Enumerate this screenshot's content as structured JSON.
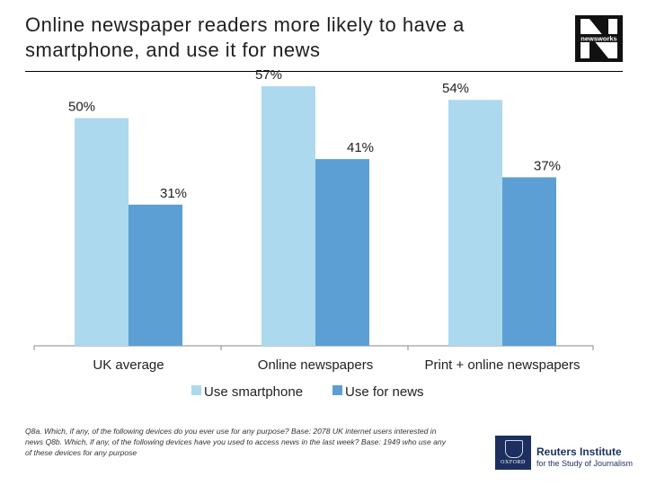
{
  "header": {
    "title": "Online newspaper readers more likely to have a smartphone, and use it for news",
    "logo_text": "newsworks"
  },
  "chart_data": {
    "type": "bar",
    "categories": [
      "UK average",
      "Online newspapers",
      "Print + online newspapers"
    ],
    "series": [
      {
        "name": "Use smartphone",
        "values": [
          50,
          57,
          54
        ],
        "labels": [
          "50%",
          "57%",
          "54%"
        ],
        "color": "#acd9ee"
      },
      {
        "name": "Use for news",
        "values": [
          31,
          41,
          37
        ],
        "labels": [
          "31%",
          "41%",
          "37%"
        ],
        "color": "#5b9fd4"
      }
    ],
    "ylim": [
      0,
      57
    ],
    "grid": false,
    "legend": "bottom"
  },
  "footnote": "Q8a. Which, if any, of the following devices do you ever use for any purpose? Base: 2078 UK internet users interested in news Q8b. Which, if any, of the following devices have you used to access news in the last week? Base: 1949 who use any of these devices for any purpose",
  "footer": {
    "oxford_text": "OXFORD",
    "reuters_title": "Reuters Institute",
    "reuters_sub": "for the Study of Journalism"
  }
}
